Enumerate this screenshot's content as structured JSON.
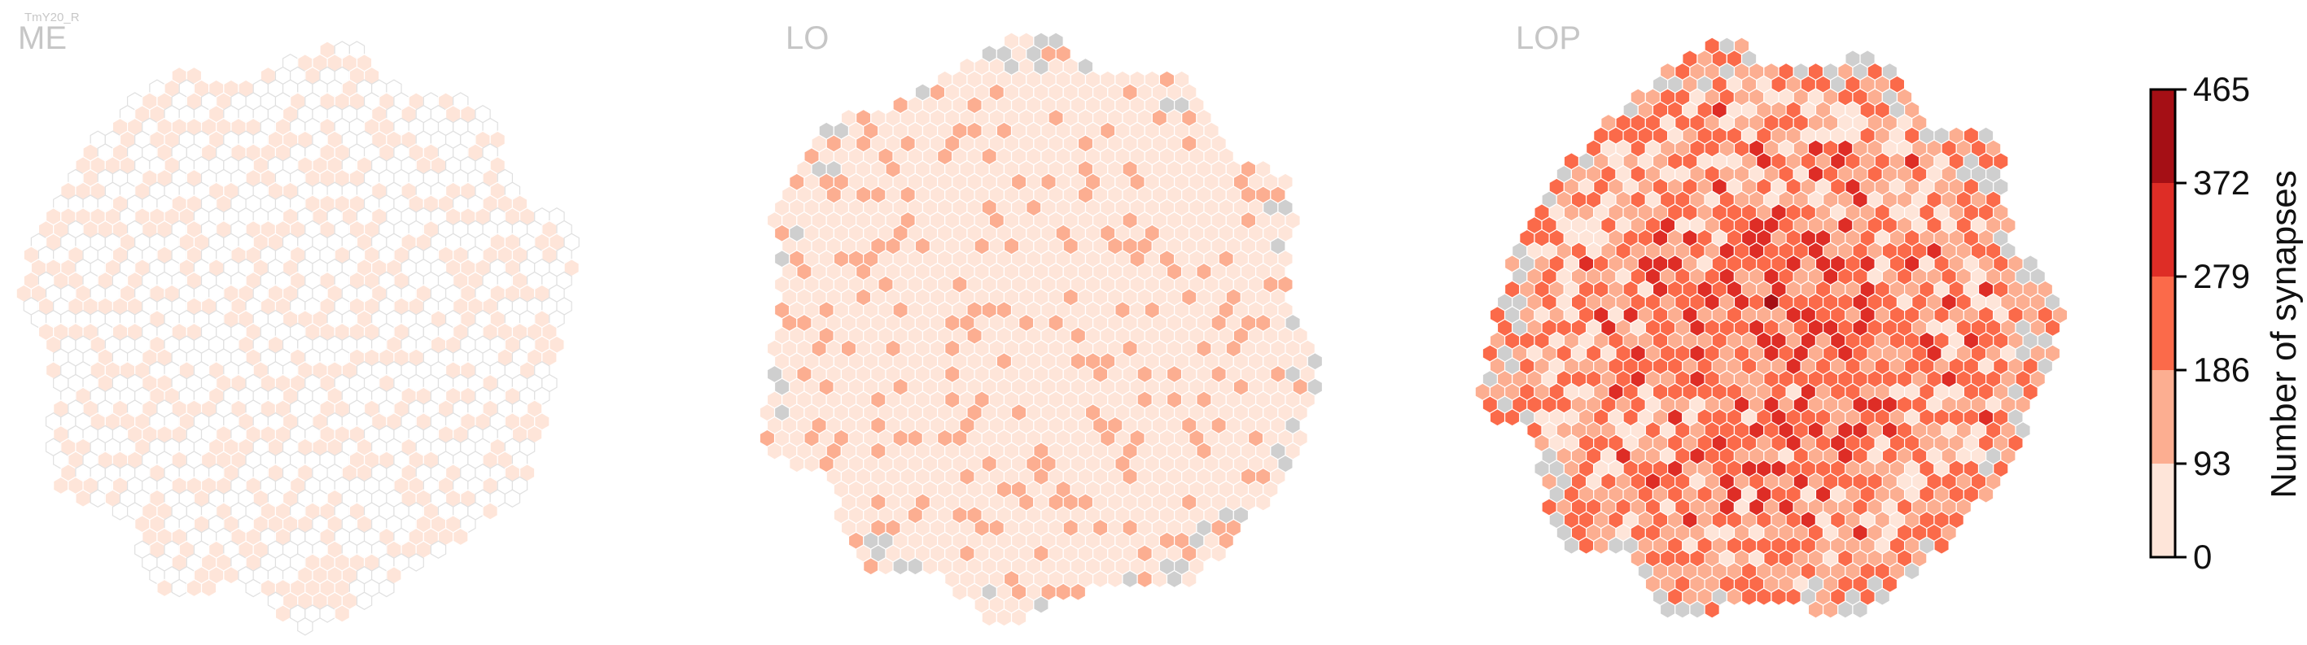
{
  "figure": {
    "neuron_label": "TmY20_R"
  },
  "legend": {
    "bins": [
      0,
      93,
      186,
      279,
      372,
      465
    ],
    "label": "Number of synapses",
    "colors": [
      "#fee5d9",
      "#fcae91",
      "#fb6a4a",
      "#de2d26",
      "#a50f15"
    ]
  },
  "styling": {
    "empty_fill": "#ffffff",
    "empty_stroke": "#e0e0e0",
    "no_data_fill": "#cfcfcf",
    "cell_stroke": "#ffffff",
    "label_color": "#c6c6c6"
  },
  "chart_data": [
    {
      "type": "heatmap",
      "title": "ME",
      "colorbar_label": "Number of synapses",
      "bins": [
        0,
        93,
        186,
        279,
        372,
        465
      ],
      "mode": "sparse",
      "levels": {
        "level_0_93": 0.42,
        "level_93_186": 0.0,
        "level_186_279": 0.0,
        "level_279_372": 0.0,
        "level_372_465": 0.0,
        "no_data": 0.0
      }
    },
    {
      "type": "heatmap",
      "title": "LO",
      "colorbar_label": "Number of synapses",
      "bins": [
        0,
        93,
        186,
        279,
        372,
        465
      ],
      "mode": "mostly_low",
      "levels": {
        "level_0_93": 0.8,
        "level_93_186": 0.16,
        "level_186_279": 0.0,
        "level_279_372": 0.0,
        "level_372_465": 0.0,
        "no_data": 0.04
      }
    },
    {
      "type": "heatmap",
      "title": "LOP",
      "colorbar_label": "Number of synapses",
      "bins": [
        0,
        93,
        186,
        279,
        372,
        465
      ],
      "mode": "dense",
      "levels": {
        "level_0_93": 0.2,
        "level_93_186": 0.35,
        "level_186_279": 0.3,
        "level_279_372": 0.1,
        "level_372_465": 0.01,
        "no_data": 0.04
      }
    }
  ]
}
